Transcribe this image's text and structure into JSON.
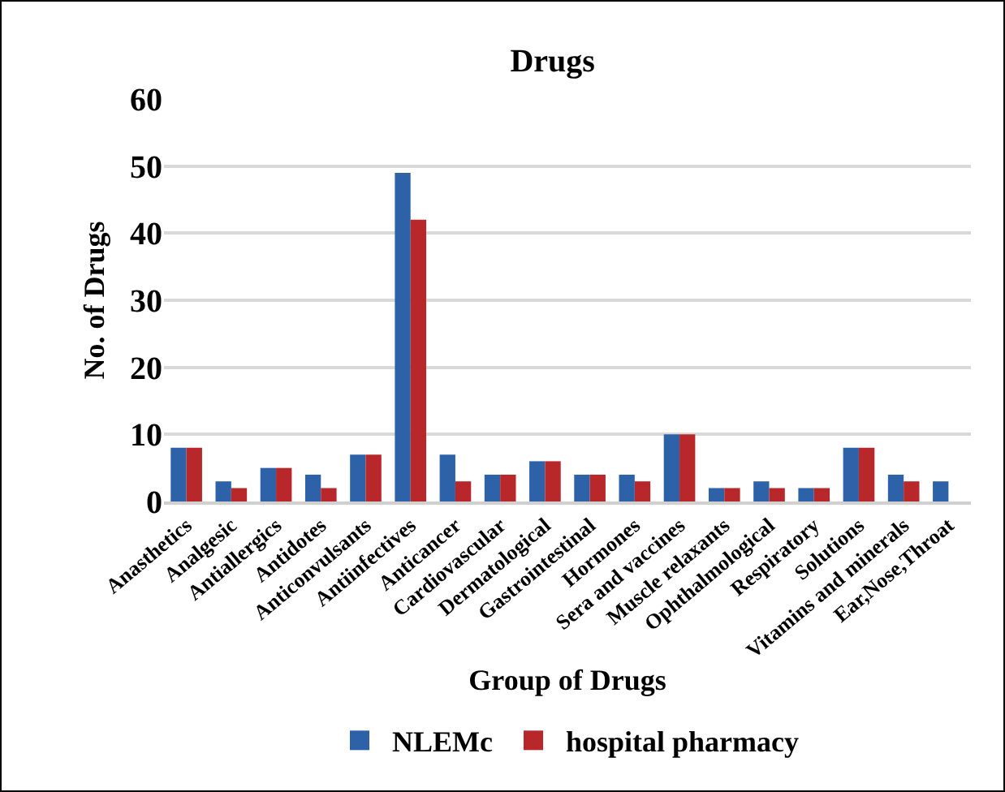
{
  "chart_data": {
    "type": "bar",
    "title": "Drugs",
    "xlabel": "Group of Drugs",
    "ylabel": "No. of Drugs",
    "categories": [
      "Anasthetics",
      "Analgesic",
      "Antiallergics",
      "Antidotes",
      "Anticonvulsants",
      "Antiinfectives",
      "Anticancer",
      "Cardiovascular",
      "Dermatological",
      "Gastrointestinal",
      "Hormones",
      "Sera and vaccines",
      "Muscle relaxants",
      "Ophthalmological",
      "Respiratory",
      "Solutions",
      "Vitamins and minerals",
      "Ear,Nose,Throat"
    ],
    "series": [
      {
        "name": "NLEMc",
        "color": "#2e62a8",
        "values": [
          8,
          3,
          5,
          4,
          7,
          49,
          7,
          4,
          6,
          4,
          4,
          10,
          2,
          3,
          2,
          8,
          4,
          3
        ]
      },
      {
        "name": "hospital pharmacy",
        "color": "#b8282b",
        "values": [
          8,
          2,
          5,
          2,
          7,
          42,
          3,
          4,
          6,
          4,
          3,
          10,
          2,
          2,
          2,
          8,
          3,
          0
        ]
      }
    ],
    "ylim": [
      0,
      60
    ],
    "yticks": [
      0,
      10,
      20,
      30,
      40,
      50,
      60
    ],
    "grid": "y",
    "legend": "bottom"
  }
}
